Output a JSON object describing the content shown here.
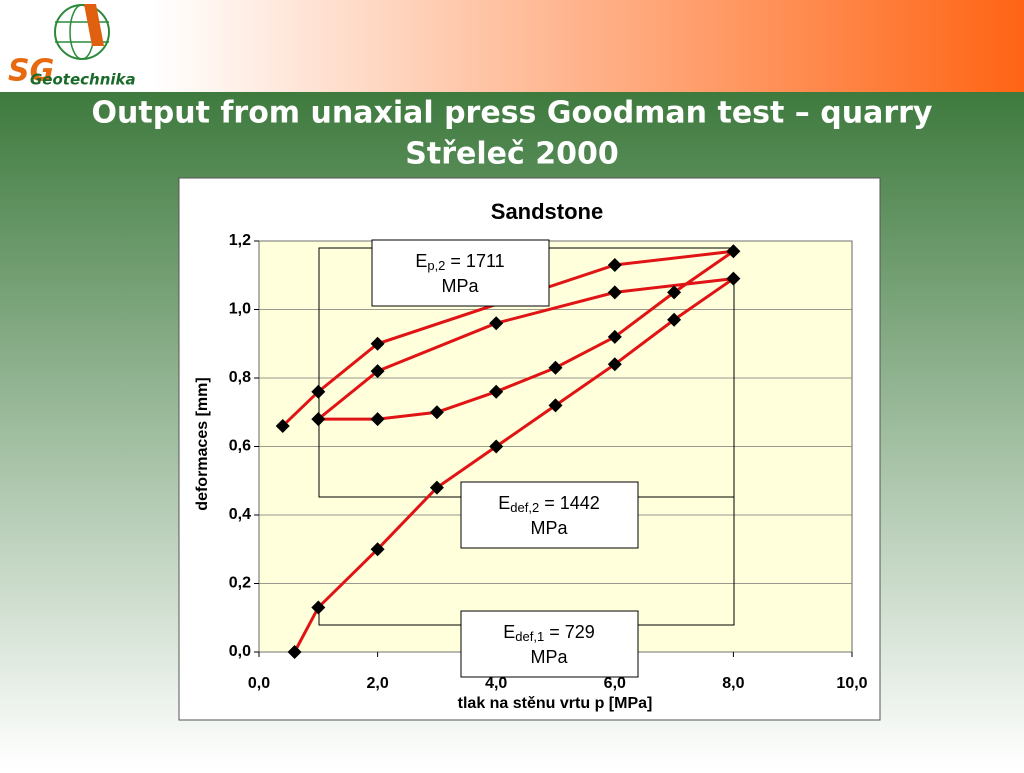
{
  "logo": {
    "mark": "SG",
    "name": "Geotechnika"
  },
  "title_lines": [
    "Output from unaxial press Goodman test – quarry",
    "Střeleč 2000"
  ],
  "chart_data": {
    "type": "line",
    "title": "Sandstone",
    "xlabel": "tlak na stěnu vrtu p [MPa]",
    "ylabel": "deformaces [mm]",
    "xlim": [
      0,
      10
    ],
    "ylim": [
      0,
      1.2
    ],
    "xticks": [
      {
        "value": 0,
        "label": "0,0"
      },
      {
        "value": 2,
        "label": "2,0"
      },
      {
        "value": 4,
        "label": "4,0"
      },
      {
        "value": 6,
        "label": "6,0"
      },
      {
        "value": 8,
        "label": "8,0"
      },
      {
        "value": 10,
        "label": "10,0"
      }
    ],
    "yticks": [
      {
        "value": 0,
        "label": "0,0"
      },
      {
        "value": 0.2,
        "label": "0,2"
      },
      {
        "value": 0.4,
        "label": "0,4"
      },
      {
        "value": 0.6,
        "label": "0,6"
      },
      {
        "value": 0.8,
        "label": "0,8"
      },
      {
        "value": 1.0,
        "label": "1,0"
      },
      {
        "value": 1.2,
        "label": "1,2"
      }
    ],
    "grid": true,
    "series": [
      {
        "color": "#e01414",
        "marker_color": "#000000",
        "x": [
          0.6,
          1.0,
          2.0,
          3.0,
          4.0,
          5.0,
          6.0,
          7.0,
          8.0,
          6.0,
          4.0,
          2.0,
          1.0,
          2.0,
          3.0,
          4.0,
          5.0,
          6.0,
          7.0,
          8.0,
          6.0,
          2.0,
          1.0,
          0.4
        ],
        "values": [
          0.0,
          0.13,
          0.3,
          0.48,
          0.6,
          0.72,
          0.84,
          0.97,
          1.09,
          1.05,
          0.96,
          0.82,
          0.68,
          0.68,
          0.7,
          0.76,
          0.83,
          0.92,
          1.05,
          1.17,
          1.13,
          0.9,
          0.76,
          0.66
        ]
      }
    ],
    "annotations": [
      {
        "symbol": "E",
        "subscript": "p,2",
        "text": " = 1711",
        "unit": "MPa"
      },
      {
        "symbol": "E",
        "subscript": "def,2",
        "text": " = 1442",
        "unit": "MPa"
      },
      {
        "symbol": "E",
        "subscript": "def,1",
        "text": " = 729",
        "unit": "MPa"
      }
    ]
  }
}
